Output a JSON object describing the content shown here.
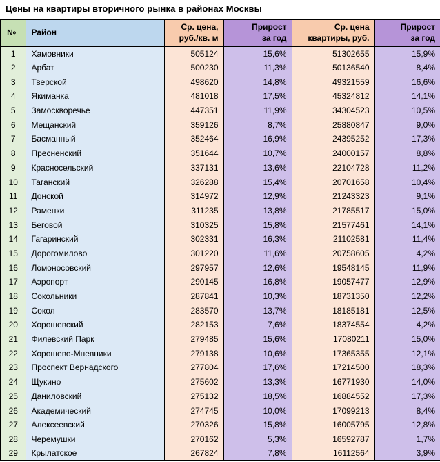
{
  "title": "Цены на квартиры вторичного рынка в районах Москвы",
  "colors": {
    "border": "#000000",
    "green-header": "#c6e0b4",
    "green-body": "#e2efda",
    "blue-header": "#bdd7ee",
    "blue-body": "#dce9f6",
    "peach-header": "#f8cbad",
    "peach-body": "#fce4d6",
    "purple-header": "#b694d8",
    "purple-body": "#cebfea",
    "text": "#000000"
  },
  "table": {
    "headers": [
      {
        "key": "number",
        "cell_name": "cell-number",
        "lines": [
          "№"
        ]
      },
      {
        "key": "district",
        "cell_name": "cell-district",
        "lines": [
          "Район"
        ]
      },
      {
        "key": "price-per-sqm",
        "cell_name": "cell-price-per-sqm",
        "lines": [
          "Ср. цена,",
          "руб./кв. м"
        ]
      },
      {
        "key": "growth-sqm",
        "cell_name": "cell-growth-sqm",
        "lines": [
          "Прирост",
          "за год"
        ]
      },
      {
        "key": "apartment-price",
        "cell_name": "cell-apartment-price",
        "lines": [
          "Ср. цена",
          "квартиры, руб."
        ]
      },
      {
        "key": "growth-apartment",
        "cell_name": "cell-growth-apartment",
        "lines": [
          "Прирост",
          "за год"
        ]
      }
    ],
    "rows": [
      [
        "1",
        "Хамовники",
        "505124",
        "15,6%",
        "51302655",
        "15,9%"
      ],
      [
        "2",
        "Арбат",
        "500230",
        "11,3%",
        "50136540",
        "8,4%"
      ],
      [
        "3",
        "Тверской",
        "498620",
        "14,8%",
        "49321559",
        "16,6%"
      ],
      [
        "4",
        "Якиманка",
        "481018",
        "17,5%",
        "45324812",
        "14,1%"
      ],
      [
        "5",
        "Замоскворечье",
        "447351",
        "11,9%",
        "34304523",
        "10,5%"
      ],
      [
        "6",
        "Мещанский",
        "359126",
        "8,7%",
        "25880847",
        "9,0%"
      ],
      [
        "7",
        "Басманный",
        "352464",
        "16,9%",
        "24395252",
        "17,3%"
      ],
      [
        "8",
        "Пресненский",
        "351644",
        "10,7%",
        "24000157",
        "8,8%"
      ],
      [
        "9",
        "Красносельский",
        "337131",
        "13,6%",
        "22104728",
        "11,2%"
      ],
      [
        "10",
        "Таганский",
        "326288",
        "15,4%",
        "20701658",
        "10,4%"
      ],
      [
        "11",
        "Донской",
        "314972",
        "12,9%",
        "21243323",
        "9,1%"
      ],
      [
        "12",
        "Раменки",
        "311235",
        "13,8%",
        "21785517",
        "15,0%"
      ],
      [
        "13",
        "Беговой",
        "310325",
        "15,8%",
        "21577461",
        "14,1%"
      ],
      [
        "14",
        "Гагаринский",
        "302331",
        "16,3%",
        "21102581",
        "11,4%"
      ],
      [
        "15",
        "Дорогомилово",
        "301220",
        "11,6%",
        "20758605",
        "4,2%"
      ],
      [
        "16",
        "Ломоносовский",
        "297957",
        "12,6%",
        "19548145",
        "11,9%"
      ],
      [
        "17",
        "Аэропорт",
        "290145",
        "16,8%",
        "19057477",
        "12,9%"
      ],
      [
        "18",
        "Сокольники",
        "287841",
        "10,3%",
        "18731350",
        "12,2%"
      ],
      [
        "19",
        "Сокол",
        "283570",
        "13,7%",
        "18185181",
        "12,5%"
      ],
      [
        "20",
        "Хорошевский",
        "282153",
        "7,6%",
        "18374554",
        "4,2%"
      ],
      [
        "21",
        "Филевский Парк",
        "279485",
        "15,6%",
        "17080211",
        "15,0%"
      ],
      [
        "22",
        "Хорошево-Мневники",
        "279138",
        "10,6%",
        "17365355",
        "12,1%"
      ],
      [
        "23",
        "Проспект Вернадского",
        "277804",
        "17,6%",
        "17214500",
        "18,3%"
      ],
      [
        "24",
        "Щукино",
        "275602",
        "13,3%",
        "16771930",
        "14,0%"
      ],
      [
        "25",
        "Даниловский",
        "275132",
        "18,5%",
        "16884552",
        "17,3%"
      ],
      [
        "26",
        "Академический",
        "274745",
        "10,0%",
        "17099213",
        "8,4%"
      ],
      [
        "27",
        "Алексеевский",
        "270326",
        "15,8%",
        "16005795",
        "12,8%"
      ],
      [
        "28",
        "Черемушки",
        "270162",
        "5,3%",
        "16592787",
        "1,7%"
      ],
      [
        "29",
        "Крылатское",
        "267824",
        "7,8%",
        "16112564",
        "3,9%"
      ]
    ]
  }
}
